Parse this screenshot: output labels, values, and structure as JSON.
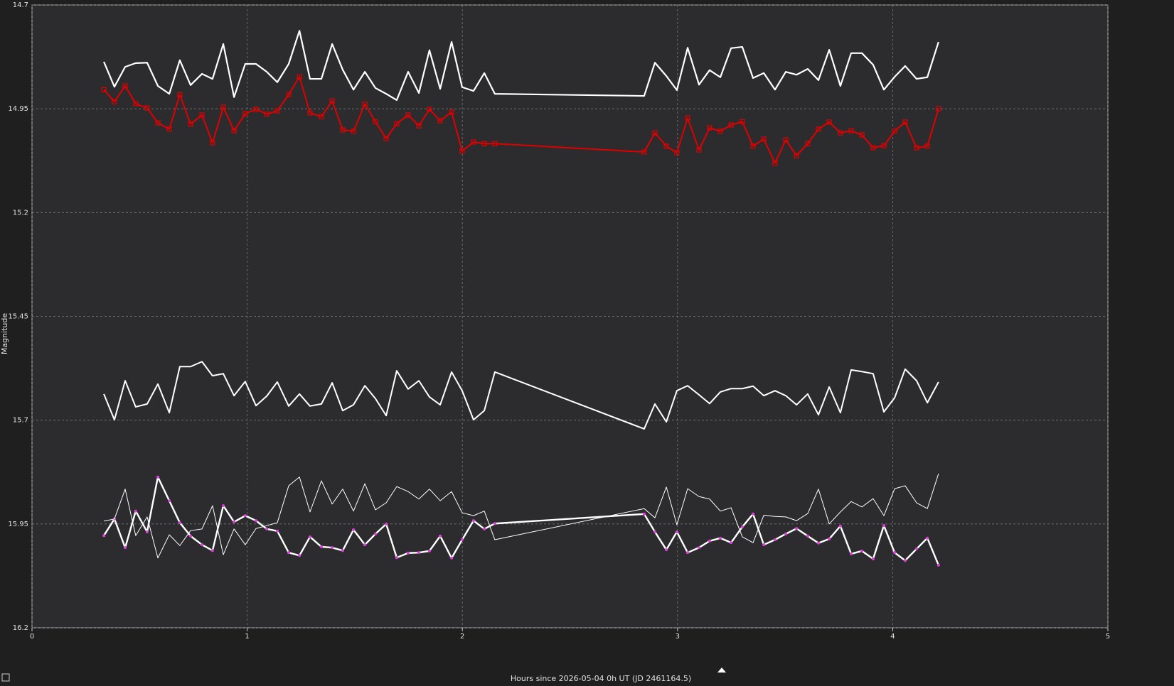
{
  "chart_data": {
    "type": "line",
    "x_label": "Hours since 2026-05-04 0h UT (JD 2461164.5)",
    "y_label": "Magnitude",
    "xlim": [
      0,
      5
    ],
    "xticks": [
      0,
      1,
      2,
      3,
      4,
      5
    ],
    "ylim": [
      16.2,
      14.7
    ],
    "yticks": [
      14.7,
      14.95,
      15.2,
      15.45,
      15.7,
      15.95,
      16.2
    ],
    "grid": true,
    "x": [
      0.334,
      0.383,
      0.433,
      0.482,
      0.535,
      0.585,
      0.638,
      0.687,
      0.737,
      0.79,
      0.839,
      0.889,
      0.939,
      0.991,
      1.041,
      1.091,
      1.14,
      1.193,
      1.243,
      1.292,
      1.345,
      1.395,
      1.444,
      1.494,
      1.547,
      1.596,
      1.646,
      1.695,
      1.748,
      1.798,
      1.847,
      1.897,
      1.95,
      1.999,
      2.052,
      2.102,
      2.151,
      2.845,
      2.895,
      2.948,
      2.997,
      3.047,
      3.1,
      3.149,
      3.199,
      3.249,
      3.301,
      3.351,
      3.401,
      3.453,
      3.503,
      3.553,
      3.605,
      3.655,
      3.705,
      3.757,
      3.807,
      3.857,
      3.909,
      3.959,
      4.009,
      4.058,
      4.111,
      4.161,
      4.213
    ],
    "series": [
      {
        "color": "#ffffff",
        "line_width": 2.2,
        "marker": "none",
        "values": [
          14.837,
          14.897,
          14.849,
          14.84,
          14.839,
          14.895,
          14.914,
          14.833,
          14.893,
          14.866,
          14.878,
          14.794,
          14.922,
          14.842,
          14.842,
          14.861,
          14.886,
          14.842,
          14.762,
          14.878,
          14.878,
          14.794,
          14.856,
          14.904,
          14.861,
          14.9,
          14.914,
          14.929,
          14.861,
          14.912,
          14.809,
          14.902,
          14.789,
          14.898,
          14.907,
          14.864,
          14.914,
          14.919,
          14.839,
          14.871,
          14.905,
          14.803,
          14.892,
          14.857,
          14.874,
          14.804,
          14.801,
          14.876,
          14.864,
          14.904,
          14.861,
          14.868,
          14.854,
          14.881,
          14.808,
          14.895,
          14.816,
          14.816,
          14.844,
          14.904,
          14.873,
          14.847,
          14.878,
          14.874,
          14.789
        ]
      },
      {
        "color": "#e00000",
        "line_width": 2,
        "marker": "square",
        "values": [
          14.904,
          14.933,
          14.895,
          14.938,
          14.948,
          14.984,
          14.999,
          14.916,
          14.987,
          14.965,
          15.032,
          14.946,
          15.003,
          14.962,
          14.951,
          14.963,
          14.955,
          14.916,
          14.873,
          14.96,
          14.969,
          14.931,
          15.001,
          15.004,
          14.939,
          14.981,
          15.022,
          14.986,
          14.965,
          14.991,
          14.951,
          14.979,
          14.958,
          15.052,
          15.03,
          15.034,
          15.034,
          15.054,
          15.008,
          15.04,
          15.056,
          14.972,
          15.049,
          14.996,
          15.004,
          14.989,
          14.981,
          15.04,
          15.023,
          15.081,
          15.025,
          15.063,
          15.034,
          14.999,
          14.982,
          15.008,
          15.003,
          15.013,
          15.044,
          15.039,
          15.004,
          14.982,
          15.044,
          15.04,
          14.95
        ]
      },
      {
        "color": "#ffffff",
        "line_width": 2,
        "marker": "none",
        "values": [
          15.637,
          15.699,
          15.605,
          15.668,
          15.661,
          15.613,
          15.682,
          15.571,
          15.571,
          15.559,
          15.593,
          15.588,
          15.641,
          15.607,
          15.665,
          15.642,
          15.608,
          15.666,
          15.637,
          15.666,
          15.661,
          15.61,
          15.677,
          15.663,
          15.617,
          15.648,
          15.689,
          15.581,
          15.625,
          15.605,
          15.644,
          15.663,
          15.584,
          15.629,
          15.699,
          15.677,
          15.584,
          15.721,
          15.661,
          15.704,
          15.629,
          15.617,
          15.639,
          15.66,
          15.632,
          15.624,
          15.624,
          15.618,
          15.641,
          15.629,
          15.641,
          15.663,
          15.637,
          15.687,
          15.62,
          15.682,
          15.579,
          15.583,
          15.588,
          15.68,
          15.646,
          15.577,
          15.605,
          15.658,
          15.608
        ]
      },
      {
        "color": "#ffffff",
        "line_width": 2.4,
        "marker": "dot",
        "marker_color": "#e040e0",
        "values": [
          15.978,
          15.938,
          16.007,
          15.919,
          15.969,
          15.837,
          15.894,
          15.947,
          15.979,
          16.0,
          16.014,
          15.906,
          15.945,
          15.93,
          15.942,
          15.962,
          15.967,
          16.019,
          16.026,
          15.981,
          16.005,
          16.007,
          16.014,
          15.964,
          16.0,
          15.974,
          15.95,
          16.031,
          16.02,
          16.019,
          16.015,
          15.979,
          16.032,
          15.988,
          15.942,
          15.962,
          15.949,
          15.926,
          15.969,
          16.012,
          15.969,
          16.019,
          16.007,
          15.991,
          15.984,
          15.995,
          15.957,
          15.926,
          16.0,
          15.988,
          15.974,
          15.961,
          15.979,
          15.996,
          15.986,
          15.955,
          16.022,
          16.015,
          16.034,
          15.954,
          16.019,
          16.038,
          16.01,
          15.984,
          16.049
        ]
      },
      {
        "color": "#ffffff",
        "line_width": 1,
        "marker": "none",
        "values": [
          15.943,
          15.938,
          15.866,
          15.978,
          15.933,
          16.032,
          15.976,
          16.002,
          15.966,
          15.962,
          15.906,
          16.024,
          15.962,
          16.0,
          15.961,
          15.954,
          15.947,
          15.858,
          15.837,
          15.921,
          15.846,
          15.902,
          15.866,
          15.919,
          15.853,
          15.916,
          15.899,
          15.86,
          15.872,
          15.89,
          15.866,
          15.894,
          15.872,
          15.923,
          15.93,
          15.919,
          15.988,
          15.913,
          15.935,
          15.861,
          15.952,
          15.865,
          15.884,
          15.89,
          15.919,
          15.911,
          15.981,
          15.995,
          15.929,
          15.932,
          15.933,
          15.942,
          15.925,
          15.866,
          15.95,
          15.921,
          15.896,
          15.909,
          15.889,
          15.93,
          15.865,
          15.858,
          15.899,
          15.913,
          15.829
        ]
      }
    ]
  }
}
